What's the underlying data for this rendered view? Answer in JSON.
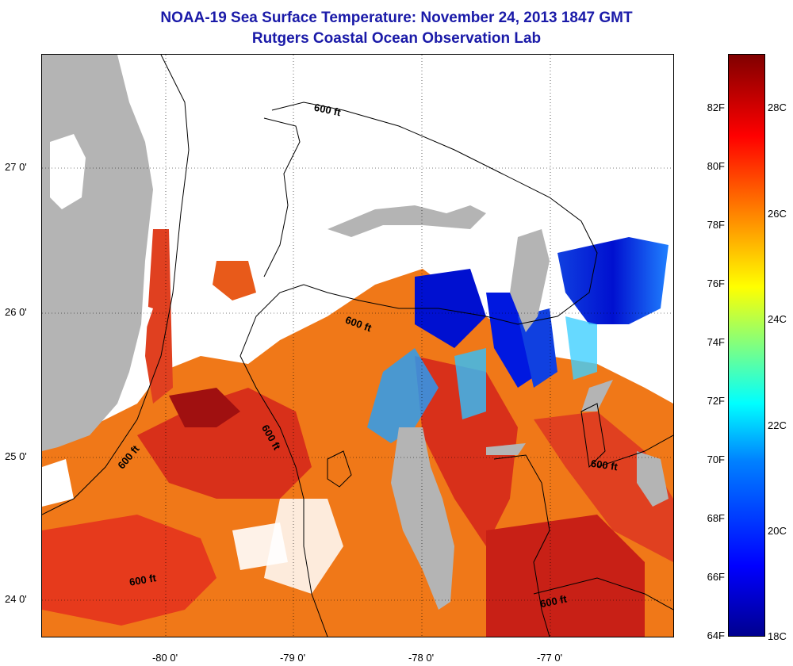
{
  "title_line1": "NOAA-19 Sea Surface Temperature:  November 24, 2013 1847 GMT",
  "title_line2": "Rutgers Coastal Ocean Observation Lab",
  "map": {
    "lat_labels": [
      "27 0'",
      "26 0'",
      "25 0'",
      "24 0'"
    ],
    "lon_labels": [
      "-80 0'",
      "-79 0'",
      "-78 0'",
      "-77 0'"
    ],
    "contour_labels": [
      "600 ft",
      "600 ft",
      "600 ft",
      "600 ft",
      "600 ft",
      "600 ft",
      "600 ft"
    ],
    "colors": {
      "land": "#b4b4b4",
      "cloud": "#ffffff",
      "warm": "#e0301e",
      "orange": "#f07818",
      "cold": "#0010d0",
      "darkred": "#a01010"
    }
  },
  "colorbar": {
    "fahrenheit_labels": [
      "82F",
      "80F",
      "78F",
      "76F",
      "74F",
      "72F",
      "70F",
      "68F",
      "66F",
      "64F"
    ],
    "celsius_labels": [
      "28C",
      "26C",
      "24C",
      "22C",
      "20C",
      "18C"
    ]
  }
}
